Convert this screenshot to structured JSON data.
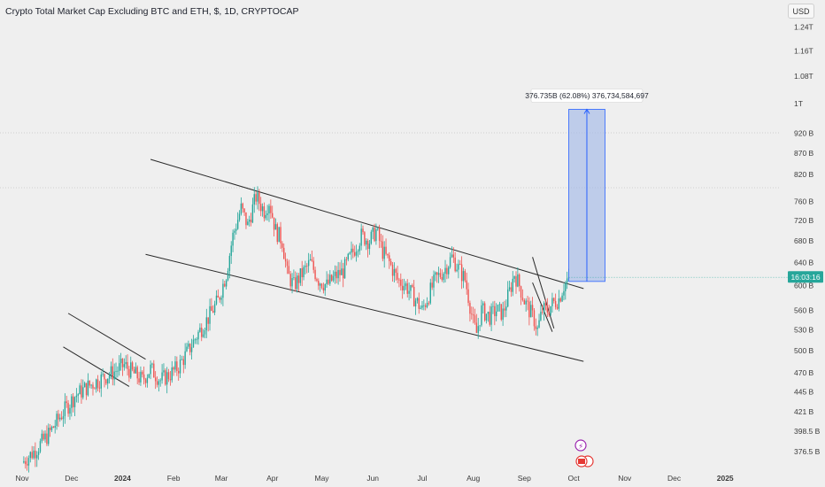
{
  "chart_title": "Crypto Total Market Cap Excluding BTC and ETH, $, 1D, CRYPTOCAP",
  "currency": "USD",
  "current_price_label": "16:03:16",
  "measure_label": "376.735B (62.08%) 376,734,584,697",
  "colors": {
    "up": "#26a69a",
    "down": "#ef5350",
    "background": "#efefef",
    "trendline": "#2a2a2a",
    "measure_fill": "#9db4e6",
    "measure_line": "#2962ff",
    "price_tag": "#26a69a"
  },
  "chart_data": {
    "type": "candlestick",
    "timeframe": "1D",
    "y_scale": "log",
    "y_ticks": [
      {
        "label": "1.24T",
        "value": 1240
      },
      {
        "label": "1.16T",
        "value": 1160
      },
      {
        "label": "1.08T",
        "value": 1080
      },
      {
        "label": "1T",
        "value": 1000
      },
      {
        "label": "920 B",
        "value": 920
      },
      {
        "label": "870 B",
        "value": 870
      },
      {
        "label": "820 B",
        "value": 820
      },
      {
        "label": "760 B",
        "value": 760
      },
      {
        "label": "720 B",
        "value": 720
      },
      {
        "label": "680 B",
        "value": 680
      },
      {
        "label": "640 B",
        "value": 640
      },
      {
        "label": "600 B",
        "value": 600
      },
      {
        "label": "560 B",
        "value": 560
      },
      {
        "label": "530 B",
        "value": 530
      },
      {
        "label": "500 B",
        "value": 500
      },
      {
        "label": "470 B",
        "value": 470
      },
      {
        "label": "445 B",
        "value": 445
      },
      {
        "label": "421 B",
        "value": 421
      },
      {
        "label": "398.5 B",
        "value": 398.5
      },
      {
        "label": "376.5 B",
        "value": 376.5
      }
    ],
    "x_ticks": [
      {
        "label": "Nov",
        "day": 0
      },
      {
        "label": "Dec",
        "day": 30
      },
      {
        "label": "2024",
        "day": 61,
        "bold": true
      },
      {
        "label": "Feb",
        "day": 92
      },
      {
        "label": "Mar",
        "day": 121
      },
      {
        "label": "Apr",
        "day": 152
      },
      {
        "label": "May",
        "day": 182
      },
      {
        "label": "Jun",
        "day": 213
      },
      {
        "label": "Jul",
        "day": 243
      },
      {
        "label": "Aug",
        "day": 274
      },
      {
        "label": "Sep",
        "day": 305
      },
      {
        "label": "Oct",
        "day": 335
      },
      {
        "label": "Nov",
        "day": 366
      },
      {
        "label": "Dec",
        "day": 396
      },
      {
        "label": "2025",
        "day": 427,
        "bold": true
      }
    ],
    "close_path": [
      [
        0,
        365
      ],
      [
        8,
        378
      ],
      [
        16,
        395
      ],
      [
        24,
        418
      ],
      [
        32,
        440
      ],
      [
        40,
        452
      ],
      [
        48,
        462
      ],
      [
        55,
        470
      ],
      [
        62,
        480
      ],
      [
        67,
        470
      ],
      [
        73,
        460
      ],
      [
        78,
        475
      ],
      [
        84,
        460
      ],
      [
        90,
        468
      ],
      [
        95,
        478
      ],
      [
        101,
        500
      ],
      [
        107,
        525
      ],
      [
        113,
        548
      ],
      [
        119,
        575
      ],
      [
        124,
        620
      ],
      [
        128,
        690
      ],
      [
        133,
        745
      ],
      [
        137,
        710
      ],
      [
        142,
        770
      ],
      [
        147,
        740
      ],
      [
        150,
        760
      ],
      [
        154,
        700
      ],
      [
        158,
        680
      ],
      [
        161,
        620
      ],
      [
        165,
        600
      ],
      [
        170,
        620
      ],
      [
        175,
        640
      ],
      [
        180,
        610
      ],
      [
        185,
        600
      ],
      [
        190,
        615
      ],
      [
        195,
        625
      ],
      [
        201,
        660
      ],
      [
        206,
        690
      ],
      [
        211,
        680
      ],
      [
        215,
        700
      ],
      [
        219,
        660
      ],
      [
        223,
        640
      ],
      [
        228,
        610
      ],
      [
        233,
        600
      ],
      [
        238,
        580
      ],
      [
        243,
        560
      ],
      [
        247,
        585
      ],
      [
        251,
        610
      ],
      [
        256,
        625
      ],
      [
        261,
        650
      ],
      [
        265,
        630
      ],
      [
        269,
        610
      ],
      [
        274,
        540
      ],
      [
        276,
        525
      ],
      [
        279,
        560
      ],
      [
        284,
        550
      ],
      [
        288,
        560
      ],
      [
        292,
        555
      ],
      [
        296,
        590
      ],
      [
        299,
        620
      ],
      [
        302,
        600
      ],
      [
        305,
        575
      ],
      [
        308,
        560
      ],
      [
        311,
        545
      ],
      [
        313,
        530
      ],
      [
        316,
        560
      ],
      [
        319,
        560
      ],
      [
        322,
        570
      ],
      [
        326,
        578
      ],
      [
        329,
        600
      ],
      [
        332,
        614
      ]
    ],
    "last_value": 614,
    "measure": {
      "from_day": 332,
      "to_day": 354,
      "low": 607,
      "high": 984
    },
    "trendlines": [
      {
        "name": "upper-channel",
        "x1": 78,
        "y1": 855,
        "x2": 341,
        "y2": 595
      },
      {
        "name": "lower-channel",
        "x1": 75,
        "y1": 655,
        "x2": 341,
        "y2": 485
      },
      {
        "name": "small-channel-upper",
        "x1": 28,
        "y1": 555,
        "x2": 75,
        "y2": 488
      },
      {
        "name": "small-channel-lower",
        "x1": 25,
        "y1": 505,
        "x2": 65,
        "y2": 452
      },
      {
        "name": "wedge-upper",
        "x1": 310,
        "y1": 650,
        "x2": 323,
        "y2": 532
      },
      {
        "name": "wedge-lower",
        "x1": 310,
        "y1": 605,
        "x2": 322,
        "y2": 527
      }
    ]
  }
}
